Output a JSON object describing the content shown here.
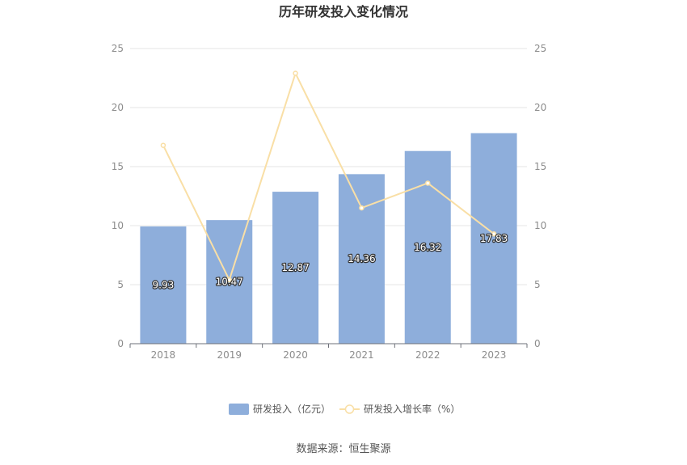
{
  "chart_data": {
    "type": "bar",
    "title": "历年研发投入变化情况",
    "categories": [
      "2018",
      "2019",
      "2020",
      "2021",
      "2022",
      "2023"
    ],
    "series": [
      {
        "name": "研发投入（亿元）",
        "type": "bar",
        "axis": "left",
        "values": [
          9.93,
          10.47,
          12.87,
          14.36,
          16.32,
          17.83
        ],
        "labels": [
          "9.93",
          "10.47",
          "12.87",
          "14.36",
          "16.32",
          "17.83"
        ],
        "color": "#8eaedb"
      },
      {
        "name": "研发投入增长率（%）",
        "type": "line",
        "axis": "right",
        "values": [
          16.8,
          5.4,
          22.9,
          11.5,
          13.6,
          9.3
        ],
        "color": "#f9dfa6"
      }
    ],
    "ylim": [
      0,
      25
    ],
    "yticks": [
      "0",
      "5",
      "10",
      "15",
      "20",
      "25"
    ],
    "y2lim": [
      0,
      25
    ],
    "y2ticks": [
      "0",
      "5",
      "10",
      "15",
      "20",
      "25"
    ],
    "grid": true,
    "legend": "bottom-center"
  },
  "source_note": "数据来源：恒生聚源"
}
